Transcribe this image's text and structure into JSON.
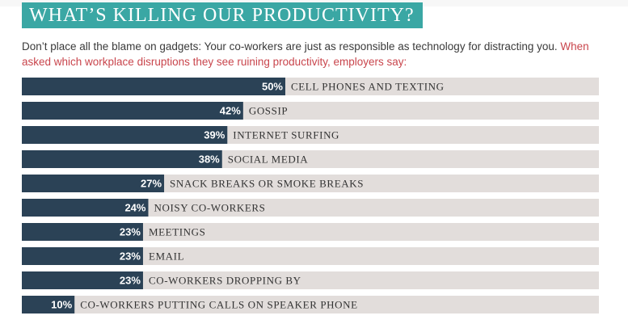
{
  "colors": {
    "title_background": "#3aa7a4",
    "bar": "#2b4256",
    "track": "#e2dddb",
    "highlight_text": "#c9454c"
  },
  "header": {
    "title": "WHAT’S KILLING OUR PRODUCTIVITY?"
  },
  "intro": {
    "plain": "Don’t place all the blame on gadgets: Your co-workers are just as responsible as technology for distracting you.",
    "highlight": "When asked which workplace disruptions they see ruining productivity, employers say:"
  },
  "chart_data": {
    "type": "bar",
    "orientation": "horizontal",
    "categories": [
      "CELL PHONES AND TEXTING",
      "GOSSIP",
      "INTERNET SURFING",
      "SOCIAL MEDIA",
      "SNACK BREAKS OR SMOKE BREAKS",
      "NOISY CO-WORKERS",
      "MEETINGS",
      "EMAIL",
      "CO-WORKERS DROPPING BY",
      "CO-WORKERS PUTTING CALLS ON SPEAKER PHONE"
    ],
    "values": [
      50,
      42,
      39,
      38,
      27,
      24,
      23,
      23,
      23,
      10
    ],
    "value_labels": [
      "50%",
      "42%",
      "39%",
      "38%",
      "27%",
      "24%",
      "23%",
      "23%",
      "23%",
      "10%"
    ],
    "unit": "%",
    "xlim": [
      0,
      100
    ],
    "grid": false,
    "legend": "none"
  }
}
